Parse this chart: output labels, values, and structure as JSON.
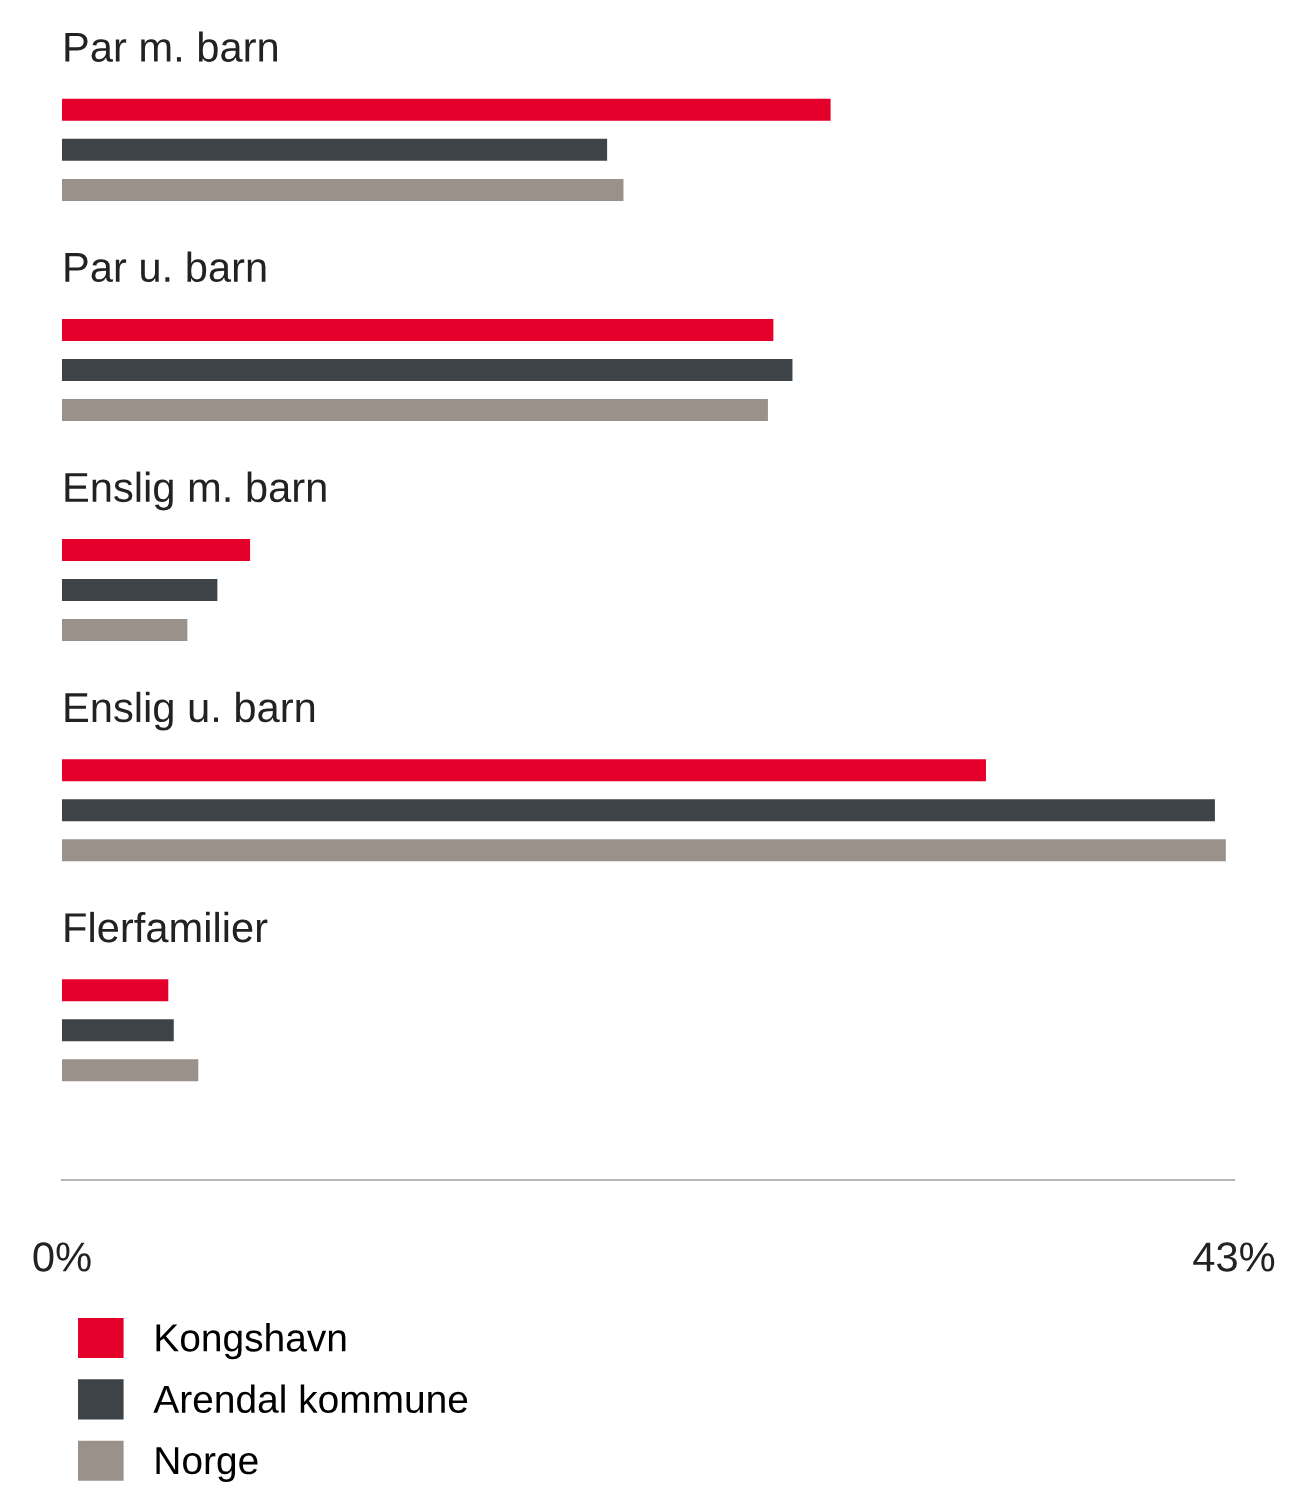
{
  "chart_data": {
    "type": "bar",
    "orientation": "horizontal",
    "categories": [
      "Par m. barn",
      "Par u. barn",
      "Enslig m. barn",
      "Enslig u. barn",
      "Flerfamilier"
    ],
    "series": [
      {
        "name": "Kongshavn",
        "color": "#e4002b",
        "values": [
          28.2,
          26.1,
          6.9,
          33.9,
          3.9
        ]
      },
      {
        "name": "Arendal kommune",
        "color": "#3d4347",
        "values": [
          20.0,
          26.8,
          5.7,
          42.3,
          4.1
        ]
      },
      {
        "name": "Norge",
        "color": "#9a918b",
        "values": [
          20.6,
          25.9,
          4.6,
          42.7,
          5.0
        ]
      }
    ],
    "xlim": [
      0,
      43
    ],
    "xticks": [
      {
        "value": 0,
        "label": "0%"
      },
      {
        "value": 43,
        "label": "43%"
      }
    ],
    "grid": false,
    "legend": "bottom"
  }
}
